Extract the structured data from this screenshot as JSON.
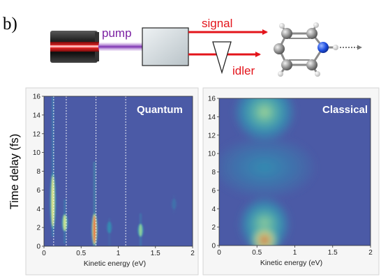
{
  "figure": {
    "panel_label": "b)",
    "schematic": {
      "pump_label": "pump",
      "signal_label": "signal",
      "idler_label": "idler",
      "laser_icon": "laser-source-icon",
      "crystal_icon": "nonlinear-crystal-icon",
      "prism_icon": "prism-icon",
      "molecule_icon": "pyrrole-molecule-icon",
      "colors": {
        "pump": "#8e3fc0",
        "signal": "#e3141b",
        "idler": "#e3141b"
      }
    }
  },
  "chart_data": [
    {
      "type": "heatmap",
      "title": "Quantum",
      "xlabel": "Kinetic energy (eV)",
      "ylabel": "Time delay (fs)",
      "xlim": [
        0,
        2
      ],
      "ylim": [
        0,
        16
      ],
      "x_ticks": [
        "0",
        "0.5",
        "1",
        "1.5",
        "2"
      ],
      "y_ticks": [
        "0",
        "2",
        "4",
        "6",
        "8",
        "10",
        "12",
        "14",
        "16"
      ],
      "reference_lines_x": [
        0.13,
        0.3,
        0.7,
        1.1
      ],
      "features": [
        {
          "x": 0.12,
          "y_peak": 4.8,
          "y_range": [
            1,
            16
          ],
          "intensity": 0.75
        },
        {
          "x": 0.28,
          "y_peak": 2.5,
          "y_range": [
            0.3,
            5
          ],
          "intensity": 0.7
        },
        {
          "x": 0.68,
          "y_peak": 1.8,
          "y_range": [
            0,
            9
          ],
          "intensity": 1.0
        },
        {
          "x": 0.88,
          "y_peak": 2.0,
          "y_range": [
            0,
            3
          ],
          "intensity": 0.25
        },
        {
          "x": 1.3,
          "y_peak": 1.7,
          "y_range": [
            0,
            3.5
          ],
          "intensity": 0.6
        },
        {
          "x": 1.75,
          "y_peak": 4.5,
          "y_range": [
            3.5,
            5.5
          ],
          "intensity": 0.12
        }
      ]
    },
    {
      "type": "heatmap",
      "title": "Classical",
      "xlabel": "Kinetic energy (eV)",
      "ylabel": "",
      "xlim": [
        0,
        2
      ],
      "ylim": [
        0,
        16
      ],
      "x_ticks": [
        "0",
        "0.5",
        "1",
        "1.5",
        "2"
      ],
      "y_ticks": [
        "0",
        "2",
        "4",
        "6",
        "8",
        "10",
        "12",
        "14",
        "16"
      ],
      "features": [
        {
          "x": 0.6,
          "y_peak": 0.6,
          "sx": 0.15,
          "sy": 1.3,
          "intensity": 1.0
        },
        {
          "x": 0.6,
          "y_peak": 2.3,
          "sx": 0.25,
          "sy": 2.2,
          "intensity": 0.55
        },
        {
          "x": 0.6,
          "y_peak": 14.5,
          "sx": 0.3,
          "sy": 2.4,
          "intensity": 0.55
        },
        {
          "x": 0.6,
          "y_peak": 8.5,
          "sx": 0.5,
          "sy": 2.5,
          "intensity": 0.22
        }
      ]
    }
  ]
}
